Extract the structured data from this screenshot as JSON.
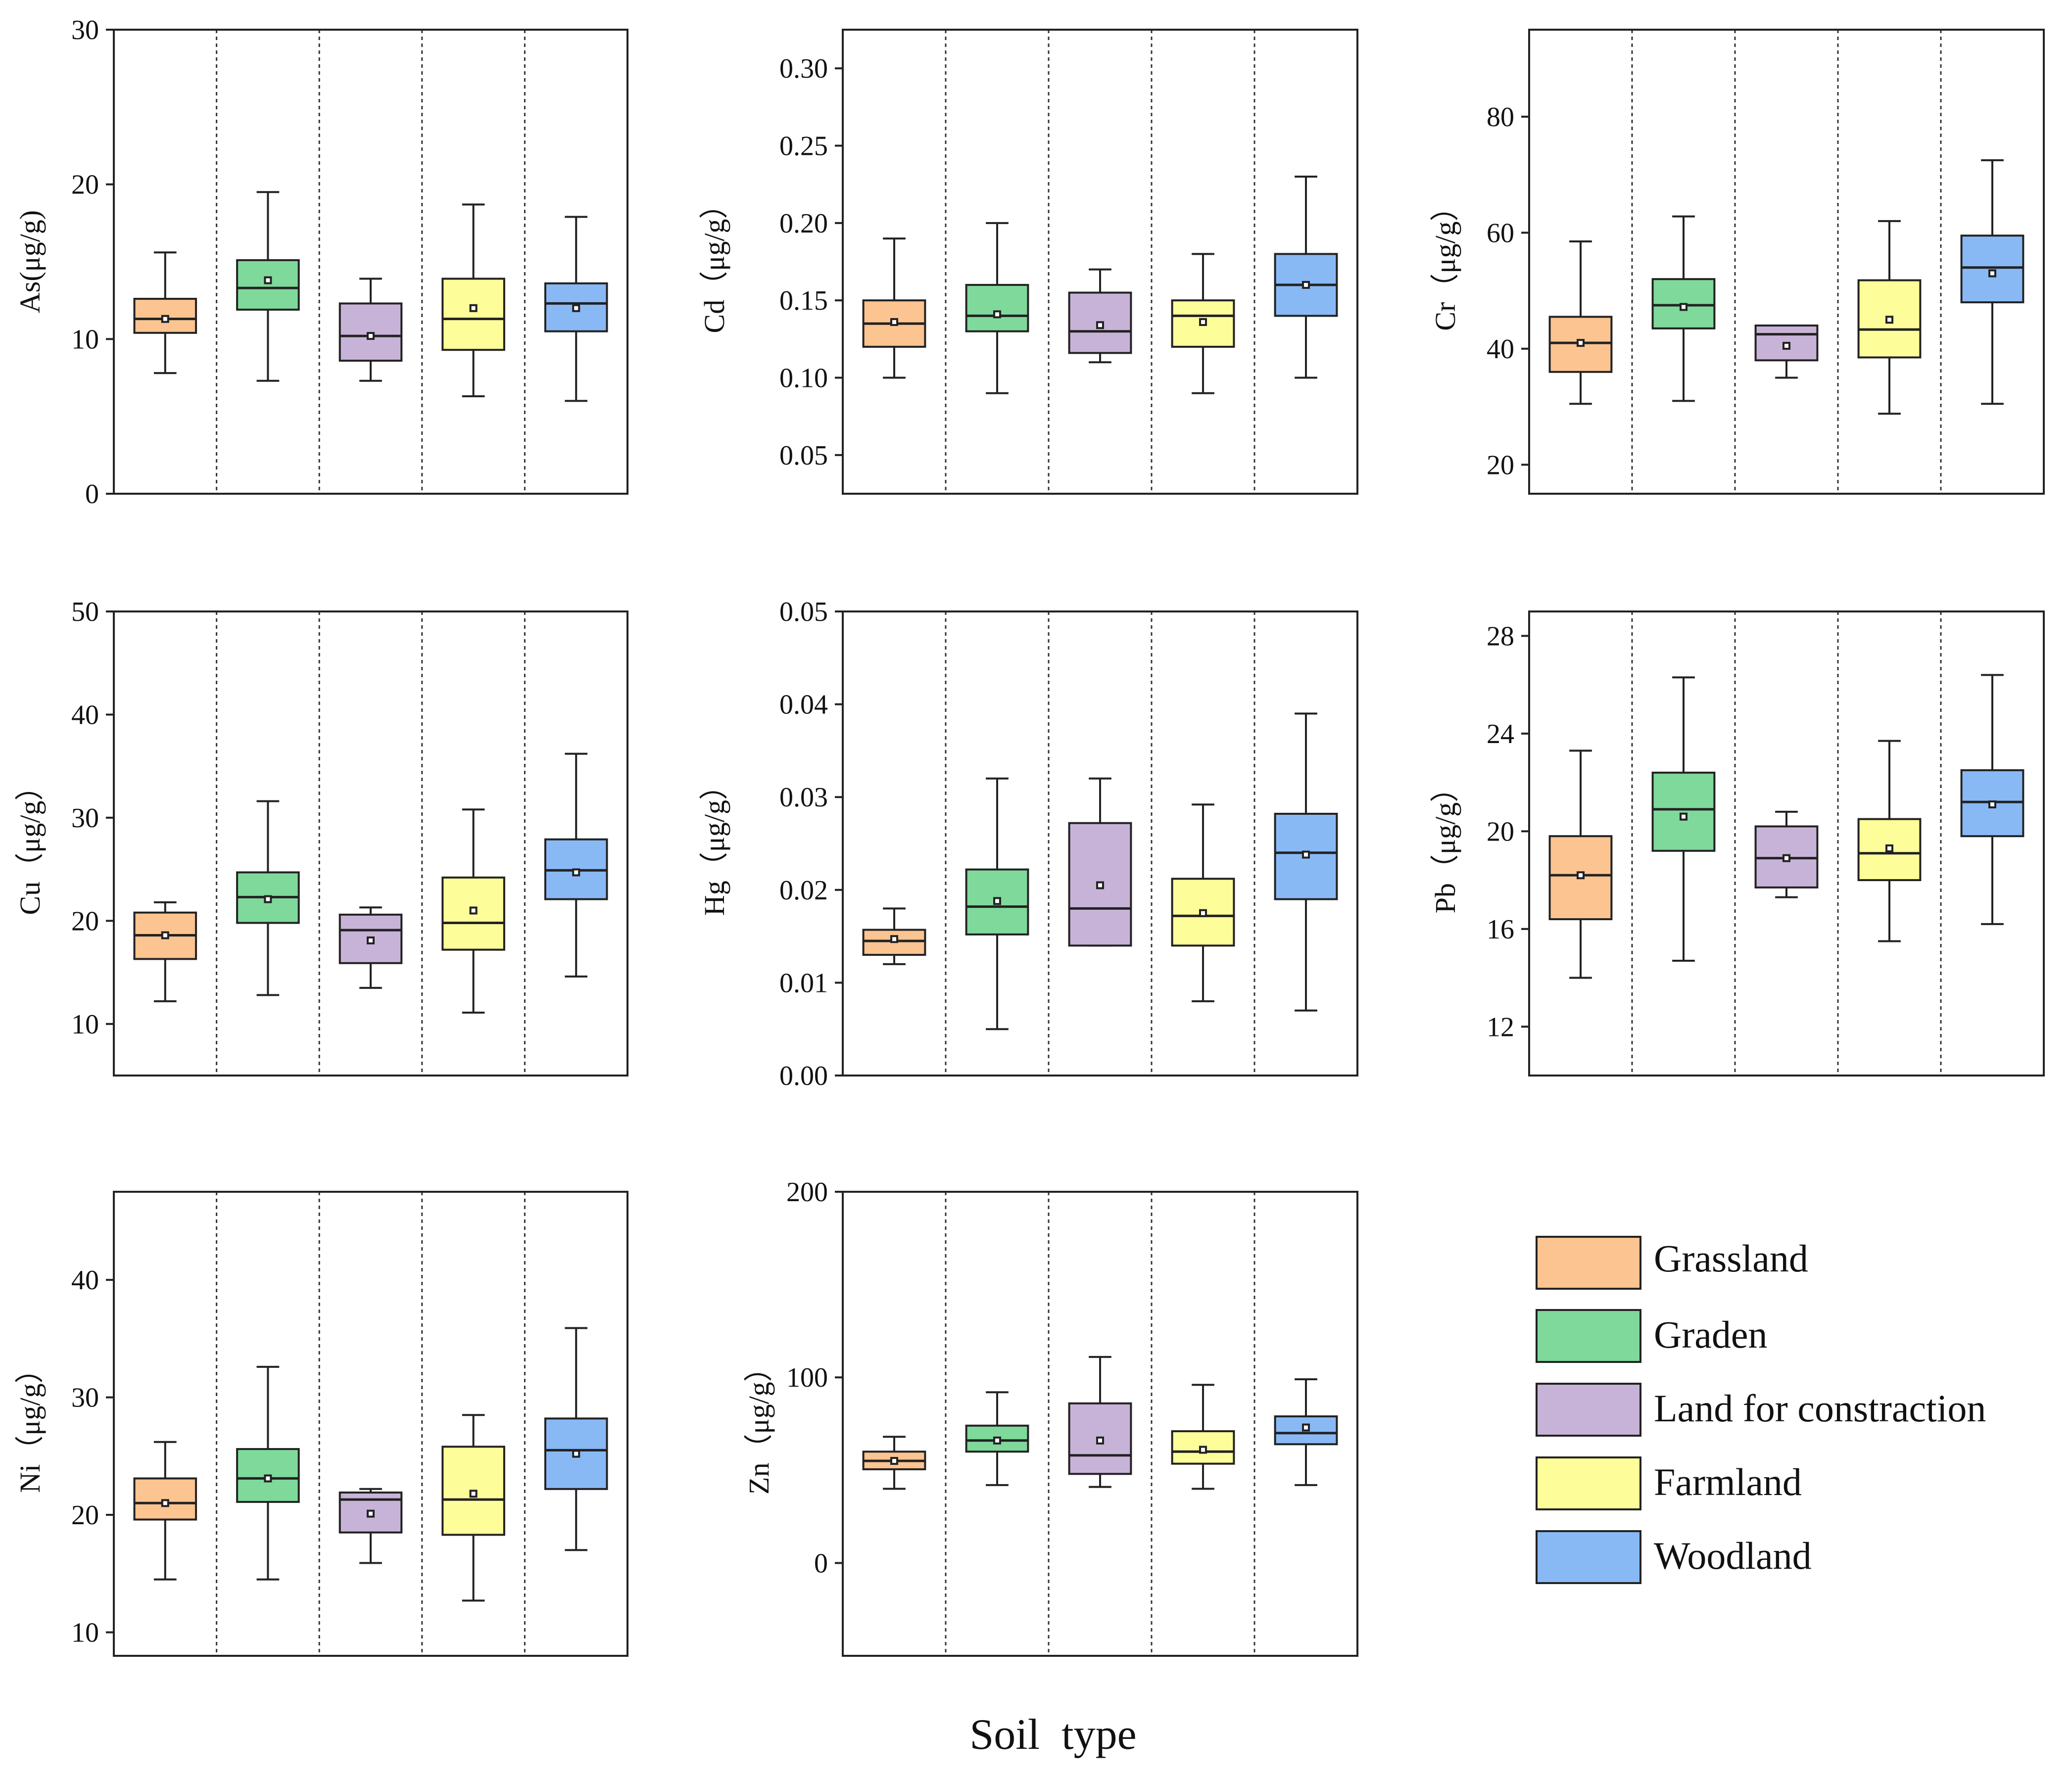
{
  "colors": {
    "Grassland": "#fcc490",
    "Graden": "#7fd99b",
    "Land for constraction": "#c8b3d8",
    "Farmland": "#fdfd9a",
    "Woodland": "#89b9f5"
  },
  "legend": {
    "entries": [
      "Grassland",
      "Graden",
      "Land for constraction",
      "Farmland",
      "Woodland"
    ]
  },
  "xlabel": "Soil  type",
  "chart_data": [
    {
      "type": "box",
      "ylabel": "As(μg/g)",
      "ylim": [
        0,
        30
      ],
      "yticks": [
        0,
        10,
        20,
        30
      ],
      "tick_decimals": 0,
      "categories": [
        "Grassland",
        "Graden",
        "Land for constraction",
        "Farmland",
        "Woodland"
      ],
      "boxes": [
        {
          "min": 7.8,
          "q1": 10.4,
          "median": 11.3,
          "q3": 12.6,
          "max": 15.6,
          "mean": 11.3
        },
        {
          "min": 7.3,
          "q1": 11.9,
          "median": 13.3,
          "q3": 15.1,
          "max": 19.5,
          "mean": 13.8
        },
        {
          "min": 7.3,
          "q1": 8.6,
          "median": 10.2,
          "q3": 12.3,
          "max": 13.9,
          "mean": 10.2
        },
        {
          "min": 6.3,
          "q1": 9.3,
          "median": 11.3,
          "q3": 13.9,
          "max": 18.7,
          "mean": 12.0
        },
        {
          "min": 6.0,
          "q1": 10.5,
          "median": 12.3,
          "q3": 13.6,
          "max": 17.9,
          "mean": 12.0
        }
      ]
    },
    {
      "type": "box",
      "ylabel": "Cd（μg/g）",
      "ylim": [
        0.025,
        0.325
      ],
      "yticks": [
        0.05,
        0.1,
        0.15,
        0.2,
        0.25,
        0.3
      ],
      "tick_decimals": 2,
      "categories": [
        "Grassland",
        "Graden",
        "Land for constraction",
        "Farmland",
        "Woodland"
      ],
      "boxes": [
        {
          "min": 0.1,
          "q1": 0.12,
          "median": 0.135,
          "q3": 0.15,
          "max": 0.19,
          "mean": 0.136
        },
        {
          "min": 0.09,
          "q1": 0.13,
          "median": 0.14,
          "q3": 0.16,
          "max": 0.2,
          "mean": 0.141
        },
        {
          "min": 0.11,
          "q1": 0.116,
          "median": 0.13,
          "q3": 0.155,
          "max": 0.17,
          "mean": 0.134
        },
        {
          "min": 0.09,
          "q1": 0.12,
          "median": 0.14,
          "q3": 0.15,
          "max": 0.18,
          "mean": 0.136
        },
        {
          "min": 0.1,
          "q1": 0.14,
          "median": 0.16,
          "q3": 0.18,
          "max": 0.23,
          "mean": 0.16
        }
      ]
    },
    {
      "type": "box",
      "ylabel": "Cr（μg/g）",
      "ylim": [
        15,
        95
      ],
      "yticks": [
        20,
        40,
        60,
        80
      ],
      "tick_decimals": 0,
      "categories": [
        "Grassland",
        "Graden",
        "Land for constraction",
        "Farmland",
        "Woodland"
      ],
      "boxes": [
        {
          "min": 30.5,
          "q1": 36.0,
          "median": 41.0,
          "q3": 45.5,
          "max": 58.5,
          "mean": 41.0
        },
        {
          "min": 31.0,
          "q1": 43.5,
          "median": 47.5,
          "q3": 52.0,
          "max": 62.8,
          "mean": 47.2
        },
        {
          "min": 35.0,
          "q1": 38.0,
          "median": 42.5,
          "q3": 44.0,
          "max": 44.0,
          "mean": 40.5
        },
        {
          "min": 28.8,
          "q1": 38.5,
          "median": 43.3,
          "q3": 51.8,
          "max": 62.0,
          "mean": 45.0
        },
        {
          "min": 30.5,
          "q1": 48.0,
          "median": 54.0,
          "q3": 59.5,
          "max": 72.5,
          "mean": 53.0
        }
      ]
    },
    {
      "type": "box",
      "ylabel": "Cu（μg/g）",
      "ylim": [
        5,
        50
      ],
      "yticks": [
        10,
        20,
        30,
        40,
        50
      ],
      "tick_decimals": 0,
      "categories": [
        "Grassland",
        "Graden",
        "Land for constraction",
        "Farmland",
        "Woodland"
      ],
      "boxes": [
        {
          "min": 12.2,
          "q1": 16.3,
          "median": 18.6,
          "q3": 20.8,
          "max": 21.8,
          "mean": 18.6
        },
        {
          "min": 12.8,
          "q1": 19.8,
          "median": 22.3,
          "q3": 24.7,
          "max": 31.6,
          "mean": 22.1
        },
        {
          "min": 13.5,
          "q1": 15.9,
          "median": 19.1,
          "q3": 20.6,
          "max": 21.3,
          "mean": 18.1
        },
        {
          "min": 11.1,
          "q1": 17.2,
          "median": 19.8,
          "q3": 24.2,
          "max": 30.8,
          "mean": 21.0
        },
        {
          "min": 14.6,
          "q1": 22.1,
          "median": 24.9,
          "q3": 27.9,
          "max": 36.2,
          "mean": 24.7
        }
      ]
    },
    {
      "type": "box",
      "ylabel": "Hg（μg/g）",
      "ylim": [
        0.0,
        0.05
      ],
      "yticks": [
        0.0,
        0.01,
        0.02,
        0.03,
        0.04,
        0.05
      ],
      "tick_decimals": 2,
      "categories": [
        "Grassland",
        "Graden",
        "Land for constraction",
        "Farmland",
        "Woodland"
      ],
      "boxes": [
        {
          "min": 0.012,
          "q1": 0.013,
          "median": 0.0145,
          "q3": 0.0157,
          "max": 0.018,
          "mean": 0.0147
        },
        {
          "min": 0.005,
          "q1": 0.0152,
          "median": 0.0182,
          "q3": 0.0222,
          "max": 0.032,
          "mean": 0.0188
        },
        {
          "min": 0.014,
          "q1": 0.014,
          "median": 0.018,
          "q3": 0.0272,
          "max": 0.032,
          "mean": 0.0205
        },
        {
          "min": 0.008,
          "q1": 0.014,
          "median": 0.0172,
          "q3": 0.0212,
          "max": 0.0292,
          "mean": 0.0175
        },
        {
          "min": 0.007,
          "q1": 0.019,
          "median": 0.024,
          "q3": 0.0282,
          "max": 0.039,
          "mean": 0.0238
        }
      ]
    },
    {
      "type": "box",
      "ylabel": "Pb（μg/g）",
      "ylim": [
        10,
        29
      ],
      "yticks": [
        12,
        16,
        20,
        24,
        28
      ],
      "tick_decimals": 0,
      "categories": [
        "Grassland",
        "Graden",
        "Land for constraction",
        "Farmland",
        "Woodland"
      ],
      "boxes": [
        {
          "min": 14.0,
          "q1": 16.4,
          "median": 18.2,
          "q3": 19.8,
          "max": 23.3,
          "mean": 18.2
        },
        {
          "min": 14.7,
          "q1": 19.2,
          "median": 20.9,
          "q3": 22.4,
          "max": 26.3,
          "mean": 20.6
        },
        {
          "min": 17.3,
          "q1": 17.7,
          "median": 18.9,
          "q3": 20.2,
          "max": 20.8,
          "mean": 18.9
        },
        {
          "min": 15.5,
          "q1": 18.0,
          "median": 19.1,
          "q3": 20.5,
          "max": 23.7,
          "mean": 19.3
        },
        {
          "min": 16.2,
          "q1": 19.8,
          "median": 21.2,
          "q3": 22.5,
          "max": 26.4,
          "mean": 21.1
        }
      ]
    },
    {
      "type": "box",
      "ylabel": "Ni（μg/g）",
      "ylim": [
        8,
        47.5
      ],
      "yticks": [
        10,
        20,
        30,
        40
      ],
      "tick_decimals": 0,
      "categories": [
        "Grassland",
        "Graden",
        "Land for constraction",
        "Farmland",
        "Woodland"
      ],
      "boxes": [
        {
          "min": 14.5,
          "q1": 19.6,
          "median": 21.0,
          "q3": 23.1,
          "max": 26.2,
          "mean": 21.0
        },
        {
          "min": 14.5,
          "q1": 21.1,
          "median": 23.1,
          "q3": 25.6,
          "max": 32.6,
          "mean": 23.1
        },
        {
          "min": 15.9,
          "q1": 18.5,
          "median": 21.3,
          "q3": 21.9,
          "max": 22.2,
          "mean": 20.1
        },
        {
          "min": 12.7,
          "q1": 18.3,
          "median": 21.3,
          "q3": 25.8,
          "max": 28.5,
          "mean": 21.8
        },
        {
          "min": 17.0,
          "q1": 22.2,
          "median": 25.5,
          "q3": 28.2,
          "max": 35.9,
          "mean": 25.2
        }
      ]
    },
    {
      "type": "box",
      "ylabel": "Zn（μg/g）",
      "ylim": [
        -50,
        200
      ],
      "yticks": [
        0,
        100,
        200
      ],
      "tick_decimals": 0,
      "categories": [
        "Grassland",
        "Graden",
        "Land for constraction",
        "Farmland",
        "Woodland"
      ],
      "boxes": [
        {
          "min": 40.0,
          "q1": 50.5,
          "median": 55.0,
          "q3": 60.0,
          "max": 68.0,
          "mean": 55.0
        },
        {
          "min": 42.0,
          "q1": 60.0,
          "median": 66.0,
          "q3": 74.0,
          "max": 92.0,
          "mean": 66.0
        },
        {
          "min": 41.0,
          "q1": 48.0,
          "median": 58.0,
          "q3": 86.0,
          "max": 111.0,
          "mean": 66.0
        },
        {
          "min": 40.0,
          "q1": 53.5,
          "median": 60.0,
          "q3": 71.0,
          "max": 96.0,
          "mean": 61.0
        },
        {
          "min": 42.0,
          "q1": 64.0,
          "median": 70.0,
          "q3": 79.0,
          "max": 99.0,
          "mean": 73.0
        }
      ]
    }
  ]
}
